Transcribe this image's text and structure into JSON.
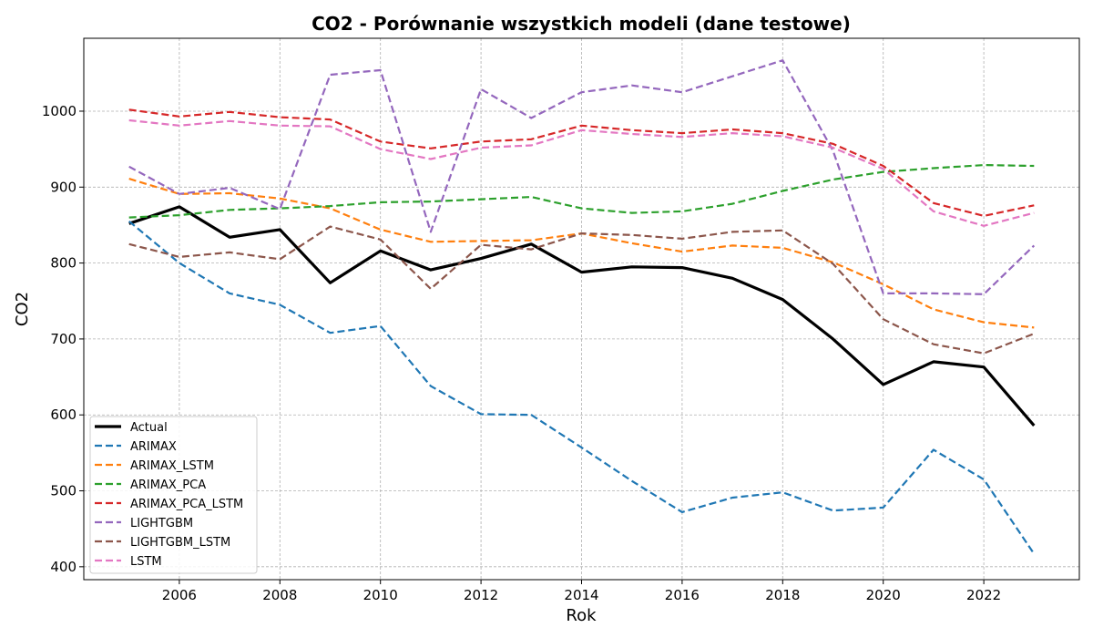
{
  "chart_data": {
    "type": "line",
    "title": "CO2 - Porównanie wszystkich modeli (dane testowe)",
    "xlabel": "Rok",
    "ylabel": "CO2",
    "xlim": [
      2004.1,
      2023.9
    ],
    "ylim": [
      383,
      1096
    ],
    "xticks": [
      2006,
      2008,
      2010,
      2012,
      2014,
      2016,
      2018,
      2020,
      2022
    ],
    "yticks": [
      400,
      500,
      600,
      700,
      800,
      900,
      1000
    ],
    "grid": true,
    "legend_position": "lower-left",
    "x": [
      2005,
      2006,
      2007,
      2008,
      2009,
      2010,
      2011,
      2012,
      2013,
      2014,
      2015,
      2016,
      2017,
      2018,
      2019,
      2020,
      2021,
      2022,
      2023
    ],
    "series": [
      {
        "name": "Actual",
        "color": "#000000",
        "style": "solid",
        "values": [
          852,
          874,
          834,
          844,
          774,
          816,
          791,
          806,
          825,
          788,
          795,
          794,
          780,
          752,
          700,
          640,
          670,
          663,
          586
        ]
      },
      {
        "name": "ARIMAX",
        "color": "#1f77b4",
        "style": "dashed",
        "values": [
          855,
          800,
          760,
          745,
          708,
          717,
          638,
          601,
          600,
          557,
          513,
          472,
          491,
          498,
          474,
          478,
          554,
          515,
          417
        ]
      },
      {
        "name": "ARIMAX_LSTM",
        "color": "#ff7f0e",
        "style": "dashed",
        "values": [
          911,
          891,
          892,
          885,
          872,
          844,
          828,
          829,
          830,
          839,
          826,
          815,
          823,
          820,
          801,
          772,
          739,
          722,
          715
        ]
      },
      {
        "name": "ARIMAX_PCA",
        "color": "#2ca02c",
        "style": "dashed",
        "values": [
          860,
          863,
          870,
          872,
          875,
          880,
          881,
          884,
          887,
          872,
          866,
          868,
          878,
          895,
          910,
          920,
          925,
          929,
          928
        ]
      },
      {
        "name": "ARIMAX_PCA_LSTM",
        "color": "#d62728",
        "style": "dashed",
        "values": [
          1002,
          993,
          999,
          992,
          989,
          960,
          951,
          960,
          963,
          981,
          975,
          971,
          976,
          971,
          957,
          928,
          879,
          862,
          876
        ]
      },
      {
        "name": "LIGHTGBM",
        "color": "#9467bd",
        "style": "dashed",
        "values": [
          927,
          891,
          899,
          871,
          1048,
          1054,
          841,
          1029,
          991,
          1025,
          1034,
          1025,
          1046,
          1067,
          948,
          760,
          760,
          759,
          823
        ]
      },
      {
        "name": "LIGHTGBM_LSTM",
        "color": "#8c564b",
        "style": "dashed",
        "values": [
          825,
          808,
          814,
          805,
          848,
          831,
          766,
          824,
          818,
          839,
          837,
          832,
          841,
          843,
          799,
          726,
          693,
          681,
          707
        ]
      },
      {
        "name": "LSTM",
        "color": "#e377c2",
        "style": "dashed",
        "values": [
          988,
          981,
          987,
          981,
          980,
          950,
          937,
          952,
          955,
          975,
          970,
          966,
          971,
          967,
          952,
          924,
          868,
          849,
          866
        ]
      }
    ]
  }
}
